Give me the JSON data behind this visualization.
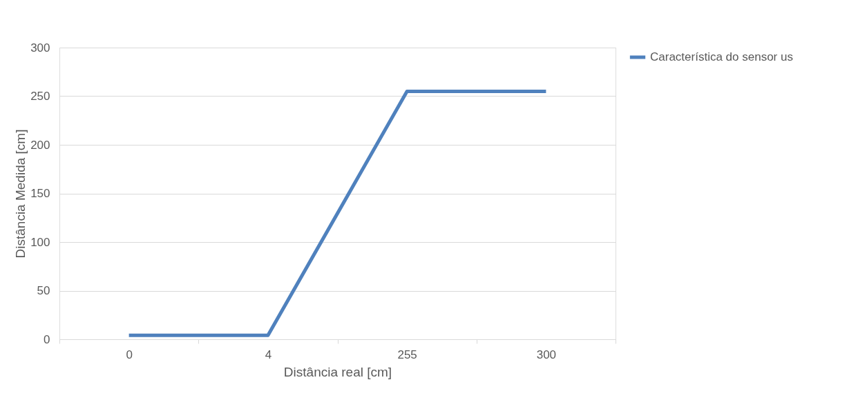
{
  "chart_data": {
    "type": "line",
    "xlabel": "Distância real [cm]",
    "ylabel": "Distância Medida [cm]",
    "categories": [
      "0",
      "4",
      "255",
      "300"
    ],
    "series": [
      {
        "name": "Característica do sensor us",
        "color": "#4f81bd",
        "values": [
          4,
          4,
          255,
          255
        ]
      }
    ],
    "ylim": [
      0,
      300
    ],
    "yticks": [
      0,
      50,
      100,
      150,
      200,
      250,
      300
    ],
    "grid": "y",
    "legend": "right",
    "marker": "none",
    "line_style": "solid"
  }
}
